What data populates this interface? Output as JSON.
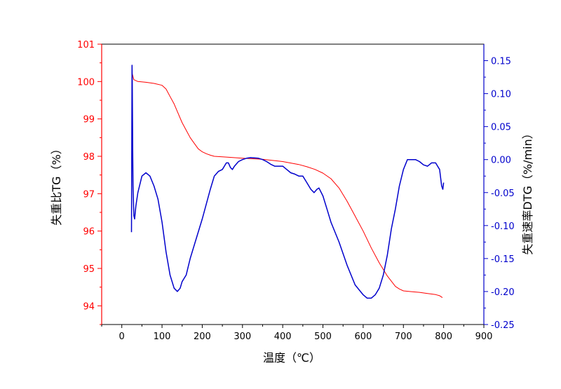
{
  "chart_data": {
    "type": "line",
    "xlabel": "温度（℃）",
    "ylabel_left": "失重比TG（%）",
    "ylabel_right": "失重速率DTG（%/min）",
    "xlim": [
      -50,
      900
    ],
    "xticks": [
      0,
      100,
      200,
      300,
      400,
      500,
      600,
      700,
      800,
      900
    ],
    "ylim_left": [
      93.5,
      101
    ],
    "yticks_left": [
      94,
      95,
      96,
      97,
      98,
      99,
      100,
      101
    ],
    "ylim_right": [
      -0.25,
      0.175
    ],
    "yticks_right": [
      -0.25,
      -0.2,
      -0.15,
      -0.1,
      -0.05,
      0.0,
      0.05,
      0.1,
      0.15
    ],
    "grid": false,
    "colors": {
      "tg": "#ff0000",
      "dtg": "#0000cc",
      "left_axis": "#ff0000",
      "right_axis": "#0000cc",
      "frame": "#000000"
    },
    "series": [
      {
        "axis": "left",
        "color": "#ff0000",
        "points": [
          [
            25,
            100.25
          ],
          [
            30,
            100.05
          ],
          [
            40,
            100.0
          ],
          [
            60,
            99.98
          ],
          [
            80,
            99.95
          ],
          [
            100,
            99.9
          ],
          [
            110,
            99.8
          ],
          [
            120,
            99.6
          ],
          [
            130,
            99.4
          ],
          [
            140,
            99.15
          ],
          [
            150,
            98.9
          ],
          [
            160,
            98.7
          ],
          [
            170,
            98.5
          ],
          [
            180,
            98.35
          ],
          [
            190,
            98.2
          ],
          [
            200,
            98.12
          ],
          [
            210,
            98.07
          ],
          [
            220,
            98.03
          ],
          [
            230,
            98.0
          ],
          [
            260,
            97.98
          ],
          [
            300,
            97.95
          ],
          [
            350,
            97.92
          ],
          [
            400,
            97.86
          ],
          [
            440,
            97.78
          ],
          [
            460,
            97.72
          ],
          [
            480,
            97.65
          ],
          [
            500,
            97.55
          ],
          [
            520,
            97.4
          ],
          [
            540,
            97.15
          ],
          [
            560,
            96.8
          ],
          [
            580,
            96.4
          ],
          [
            600,
            96.0
          ],
          [
            620,
            95.55
          ],
          [
            640,
            95.15
          ],
          [
            660,
            94.8
          ],
          [
            680,
            94.52
          ],
          [
            690,
            94.45
          ],
          [
            700,
            94.4
          ],
          [
            720,
            94.38
          ],
          [
            740,
            94.36
          ],
          [
            760,
            94.33
          ],
          [
            780,
            94.3
          ],
          [
            790,
            94.27
          ],
          [
            797,
            94.22
          ]
        ]
      },
      {
        "axis": "right",
        "color": "#0000cc",
        "points": [
          [
            24,
            -0.11
          ],
          [
            25,
            0.05
          ],
          [
            25.5,
            0.143
          ],
          [
            26,
            0.12
          ],
          [
            27,
            0.02
          ],
          [
            28,
            -0.04
          ],
          [
            30,
            -0.085
          ],
          [
            32,
            -0.09
          ],
          [
            35,
            -0.07
          ],
          [
            40,
            -0.05
          ],
          [
            50,
            -0.025
          ],
          [
            60,
            -0.02
          ],
          [
            70,
            -0.025
          ],
          [
            80,
            -0.04
          ],
          [
            90,
            -0.06
          ],
          [
            100,
            -0.095
          ],
          [
            110,
            -0.14
          ],
          [
            120,
            -0.175
          ],
          [
            130,
            -0.195
          ],
          [
            138,
            -0.2
          ],
          [
            145,
            -0.195
          ],
          [
            150,
            -0.185
          ],
          [
            160,
            -0.175
          ],
          [
            170,
            -0.15
          ],
          [
            180,
            -0.13
          ],
          [
            200,
            -0.09
          ],
          [
            220,
            -0.045
          ],
          [
            230,
            -0.025
          ],
          [
            240,
            -0.018
          ],
          [
            250,
            -0.015
          ],
          [
            260,
            -0.005
          ],
          [
            265,
            -0.005
          ],
          [
            270,
            -0.012
          ],
          [
            275,
            -0.015
          ],
          [
            280,
            -0.01
          ],
          [
            290,
            -0.003
          ],
          [
            300,
            0.0
          ],
          [
            310,
            0.002
          ],
          [
            320,
            0.003
          ],
          [
            340,
            0.002
          ],
          [
            350,
            0.0
          ],
          [
            360,
            -0.003
          ],
          [
            370,
            -0.007
          ],
          [
            380,
            -0.01
          ],
          [
            390,
            -0.01
          ],
          [
            400,
            -0.01
          ],
          [
            410,
            -0.015
          ],
          [
            420,
            -0.02
          ],
          [
            430,
            -0.022
          ],
          [
            440,
            -0.025
          ],
          [
            450,
            -0.025
          ],
          [
            460,
            -0.035
          ],
          [
            470,
            -0.045
          ],
          [
            478,
            -0.05
          ],
          [
            485,
            -0.045
          ],
          [
            490,
            -0.043
          ],
          [
            500,
            -0.055
          ],
          [
            510,
            -0.075
          ],
          [
            520,
            -0.095
          ],
          [
            540,
            -0.125
          ],
          [
            560,
            -0.16
          ],
          [
            580,
            -0.19
          ],
          [
            600,
            -0.205
          ],
          [
            610,
            -0.21
          ],
          [
            620,
            -0.21
          ],
          [
            630,
            -0.205
          ],
          [
            640,
            -0.195
          ],
          [
            650,
            -0.175
          ],
          [
            660,
            -0.145
          ],
          [
            670,
            -0.105
          ],
          [
            680,
            -0.075
          ],
          [
            690,
            -0.04
          ],
          [
            700,
            -0.015
          ],
          [
            710,
            0.0
          ],
          [
            720,
            0.0
          ],
          [
            730,
            0.0
          ],
          [
            740,
            -0.003
          ],
          [
            750,
            -0.008
          ],
          [
            760,
            -0.01
          ],
          [
            770,
            -0.005
          ],
          [
            780,
            -0.005
          ],
          [
            790,
            -0.015
          ],
          [
            795,
            -0.04
          ],
          [
            798,
            -0.045
          ],
          [
            800,
            -0.035
          ]
        ]
      }
    ]
  }
}
